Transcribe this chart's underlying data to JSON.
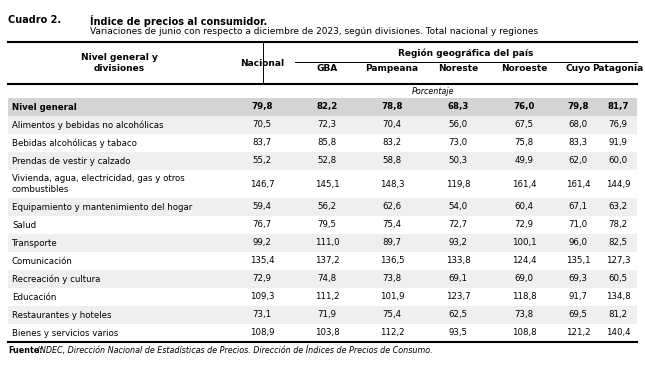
{
  "title_left": "Cuadro 2.",
  "title_right_line1": "Índice de precios al consumidor.",
  "title_right_line2": "Variaciones de junio con respecto a diciembre de 2023, según divisiones. Total nacional y regiones",
  "col_header_left": "Nivel general y\ndivisiones",
  "col_header_nacional": "Nacional",
  "region_header": "Región geográfica del país",
  "region_cols": [
    "GBA",
    "Pampeana",
    "Noreste",
    "Noroeste",
    "Cuyo",
    "Patagonia"
  ],
  "porcentaje_label": "Porcentaje",
  "footer_bold": "Fuente:",
  "footer_normal": " INDEC, Dirección Nacional de Estadísticas de Precios. Dirección de Índices de Precios de Consumo.",
  "rows": [
    {
      "label": "Nivel general",
      "bold": true,
      "values": [
        79.8,
        82.2,
        78.8,
        68.3,
        76.0,
        79.8,
        81.7
      ]
    },
    {
      "label": "Alimentos y bebidas no alcohólicas",
      "bold": false,
      "values": [
        70.5,
        72.3,
        70.4,
        56.0,
        67.5,
        68.0,
        76.9
      ]
    },
    {
      "label": "Bebidas alcohólicas y tabaco",
      "bold": false,
      "values": [
        83.7,
        85.8,
        83.2,
        73.0,
        75.8,
        83.3,
        91.9
      ]
    },
    {
      "label": "Prendas de vestir y calzado",
      "bold": false,
      "values": [
        55.2,
        52.8,
        58.8,
        50.3,
        49.9,
        62.0,
        60.0
      ]
    },
    {
      "label": "Vivienda, agua, electricidad, gas y otros\ncombustibles",
      "bold": false,
      "values": [
        146.7,
        145.1,
        148.3,
        119.8,
        161.4,
        161.4,
        144.9
      ]
    },
    {
      "label": "Equipamiento y mantenimiento del hogar",
      "bold": false,
      "values": [
        59.4,
        56.2,
        62.6,
        54.0,
        60.4,
        67.1,
        63.2
      ]
    },
    {
      "label": "Salud",
      "bold": false,
      "values": [
        76.7,
        79.5,
        75.4,
        72.7,
        72.9,
        71.0,
        78.2
      ]
    },
    {
      "label": "Transporte",
      "bold": false,
      "values": [
        99.2,
        111.0,
        89.7,
        93.2,
        100.1,
        96.0,
        82.5
      ]
    },
    {
      "label": "Comunicación",
      "bold": false,
      "values": [
        135.4,
        137.2,
        136.5,
        133.8,
        124.4,
        135.1,
        127.3
      ]
    },
    {
      "label": "Recreación y cultura",
      "bold": false,
      "values": [
        72.9,
        74.8,
        73.8,
        69.1,
        69.0,
        69.3,
        60.5
      ]
    },
    {
      "label": "Educación",
      "bold": false,
      "values": [
        109.3,
        111.2,
        101.9,
        123.7,
        118.8,
        91.7,
        134.8
      ]
    },
    {
      "label": "Restaurantes y hoteles",
      "bold": false,
      "values": [
        73.1,
        71.9,
        75.4,
        62.5,
        73.8,
        69.5,
        81.2
      ]
    },
    {
      "label": "Bienes y servicios varios",
      "bold": false,
      "values": [
        108.9,
        103.8,
        112.2,
        93.5,
        108.8,
        121.2,
        140.4
      ]
    }
  ],
  "bg_color": "#ffffff",
  "nivel_general_bg": "#d4d4d4",
  "row_bg_alt": "#efefef",
  "row_bg_white": "#ffffff",
  "text_color": "#000000",
  "line_color": "#000000",
  "title_fontsize": 7.0,
  "header_fontsize": 6.5,
  "data_fontsize": 6.2,
  "footer_fontsize": 5.8
}
